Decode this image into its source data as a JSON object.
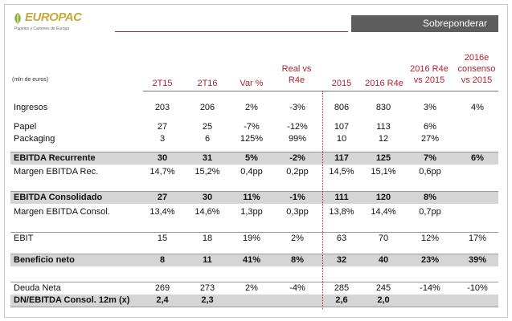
{
  "header": {
    "logo_text": "EUROPAC",
    "logo_subtitle": "Papeles y Cartones de Europa",
    "banner": "Sobreponderar",
    "units": "(mln de euros)"
  },
  "columns": {
    "c1": "2T15",
    "c2": "2T16",
    "c3": "Var %",
    "c4": "Real vs R4e",
    "c5": "2015",
    "c6": "2016 R4e",
    "c7": "2016 R4e vs 2015",
    "c8": "2016e consenso vs 2015"
  },
  "rows": [
    {
      "label": "Ingresos",
      "v": [
        "203",
        "206",
        "2%",
        "-3%",
        "806",
        "830",
        "3%",
        "4%"
      ]
    },
    {
      "label": "Papel",
      "v": [
        "27",
        "25",
        "-7%",
        "-12%",
        "107",
        "113",
        "6%",
        ""
      ]
    },
    {
      "label": "Packaging",
      "v": [
        "3",
        "6",
        "125%",
        "99%",
        "10",
        "12",
        "27%",
        ""
      ]
    },
    {
      "label": "EBITDA Recurrente",
      "v": [
        "30",
        "31",
        "5%",
        "-2%",
        "117",
        "125",
        "7%",
        "6%"
      ]
    },
    {
      "label": "Margen EBITDA Rec.",
      "v": [
        "14,7%",
        "15,2%",
        "0,4pp",
        "0,2pp",
        "14,5%",
        "15,1%",
        "0,6pp",
        ""
      ]
    },
    {
      "label": "EBITDA Consolidado",
      "v": [
        "27",
        "30",
        "11%",
        "-1%",
        "111",
        "120",
        "8%",
        ""
      ]
    },
    {
      "label": "Margen EBITDA Consol.",
      "v": [
        "13,4%",
        "14,6%",
        "1,3pp",
        "0,3pp",
        "13,8%",
        "14,4%",
        "0,7pp",
        ""
      ]
    },
    {
      "label": "EBIT",
      "v": [
        "15",
        "18",
        "19%",
        "2%",
        "63",
        "70",
        "12%",
        "17%"
      ]
    },
    {
      "label": "Beneficio neto",
      "v": [
        "8",
        "11",
        "41%",
        "8%",
        "32",
        "40",
        "23%",
        "39%"
      ]
    },
    {
      "label": "Deuda Neta",
      "v": [
        "269",
        "273",
        "2%",
        "-4%",
        "285",
        "245",
        "-14%",
        "-10%"
      ]
    },
    {
      "label": "DN/EBITDA Consol. 12m (x)",
      "v": [
        "2,4",
        "2,3",
        "",
        "",
        "2,6",
        "2,0",
        "",
        ""
      ]
    }
  ]
}
